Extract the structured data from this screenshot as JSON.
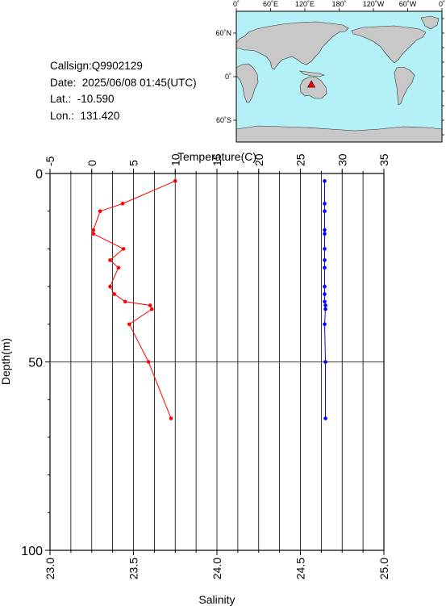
{
  "info": {
    "callsign": "Callsign:Q9902129",
    "date": "Date:  2025/06/08 01:45(UTC)",
    "lat": "Lat.:  -10.590",
    "lon": "Lon.:  131.420"
  },
  "map": {
    "lon_ticks": [
      "0˚",
      "60˚E",
      "120˚E",
      "180˚",
      "120˚W",
      "60˚W",
      "0˚"
    ],
    "lat_ticks": [
      "60˚N",
      "0˚",
      "60˚S"
    ],
    "ocean_color": "#b4f0f8",
    "land_color": "#c8c8c8",
    "marker_color": "#ff0000",
    "marker": {
      "lon": 131.42,
      "lat": -10.59
    }
  },
  "chart_data": {
    "type": "line",
    "ylabel": "Depth(m)",
    "ylim": [
      0,
      100
    ],
    "y_inverted": true,
    "y_ticks": [
      "0",
      "50",
      "100"
    ],
    "top_axis": {
      "label": "Temperature(C)",
      "range": [
        -5,
        35
      ],
      "ticks": [
        "-5",
        "0",
        "5",
        "10",
        "15",
        "20",
        "25",
        "30",
        "35"
      ]
    },
    "bottom_axis": {
      "label": "Salinity",
      "range": [
        23.0,
        25.0
      ],
      "ticks": [
        "23.0",
        "23.5",
        "24.0",
        "24.5",
        "25.0"
      ]
    },
    "grid": true,
    "series": [
      {
        "axis": "top",
        "color": "#ff0000",
        "points": [
          [
            10.0,
            2
          ],
          [
            3.7,
            8
          ],
          [
            1.0,
            10
          ],
          [
            0.2,
            15
          ],
          [
            0.2,
            16
          ],
          [
            3.8,
            20
          ],
          [
            2.2,
            23
          ],
          [
            3.2,
            25
          ],
          [
            2.2,
            30
          ],
          [
            2.7,
            32
          ],
          [
            4.0,
            34
          ],
          [
            7.0,
            35
          ],
          [
            7.2,
            36
          ],
          [
            4.5,
            40
          ],
          [
            6.8,
            50
          ],
          [
            9.5,
            65
          ]
        ]
      },
      {
        "axis": "top",
        "color": "#0000ff",
        "points": [
          [
            27.9,
            2
          ],
          [
            27.9,
            8
          ],
          [
            27.9,
            10
          ],
          [
            27.9,
            15
          ],
          [
            27.9,
            16
          ],
          [
            27.9,
            20
          ],
          [
            27.9,
            23
          ],
          [
            27.9,
            25
          ],
          [
            27.9,
            30
          ],
          [
            27.9,
            32
          ],
          [
            27.9,
            34
          ],
          [
            28.0,
            35
          ],
          [
            28.0,
            36
          ],
          [
            27.9,
            40
          ],
          [
            28.0,
            50
          ],
          [
            28.0,
            65
          ]
        ]
      }
    ]
  }
}
